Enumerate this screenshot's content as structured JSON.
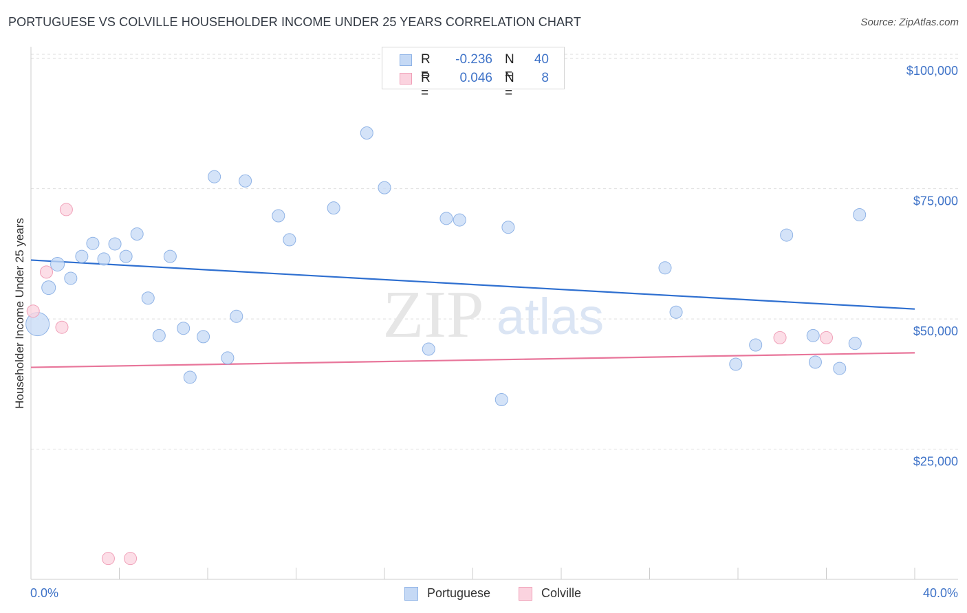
{
  "title": "PORTUGUESE VS COLVILLE HOUSEHOLDER INCOME UNDER 25 YEARS CORRELATION CHART",
  "source": "Source: ZipAtlas.com",
  "stats": {
    "rows": [
      {
        "r_label": "R =",
        "r_value": "-0.236",
        "n_label": "N =",
        "n_value": "40"
      },
      {
        "r_label": "R =",
        "r_value": "0.046",
        "n_label": "N =",
        "n_value": "8"
      }
    ]
  },
  "legend": {
    "items": [
      {
        "label": "Portuguese"
      },
      {
        "label": "Colville"
      }
    ]
  },
  "watermark": {
    "zip": "ZIP",
    "atlas": "atlas"
  },
  "colors": {
    "blue_fill": "#c5d9f5",
    "blue_stroke": "#8fb3e6",
    "blue_line": "#2e6fd0",
    "pink_fill": "#fbd3df",
    "pink_stroke": "#f0a0b8",
    "pink_line": "#e8759a",
    "tick_label": "#3f73c8",
    "grid": "#dddddd"
  },
  "chart_data": {
    "type": "scatter",
    "title": "PORTUGUESE VS COLVILLE HOUSEHOLDER INCOME UNDER 25 YEARS CORRELATION CHART",
    "xlabel": "",
    "ylabel": "Householder Income Under 25 years",
    "xlim": [
      0,
      40
    ],
    "ylim": [
      0,
      102000
    ],
    "x_tick_labels": [
      "0.0%",
      "40.0%"
    ],
    "y_ticks": [
      25000,
      50000,
      75000,
      100000
    ],
    "y_tick_labels": [
      "$25,000",
      "$50,000",
      "$75,000",
      "$100,000"
    ],
    "series": [
      {
        "name": "Portuguese",
        "color": "#8fb3e6",
        "points": [
          [
            0.3,
            49000
          ],
          [
            0.8,
            56000
          ],
          [
            1.2,
            60500
          ],
          [
            1.8,
            57800
          ],
          [
            2.3,
            62000
          ],
          [
            2.8,
            64500
          ],
          [
            3.3,
            61500
          ],
          [
            3.8,
            64400
          ],
          [
            4.3,
            62000
          ],
          [
            4.8,
            66300
          ],
          [
            5.3,
            54000
          ],
          [
            5.8,
            46800
          ],
          [
            6.3,
            62000
          ],
          [
            6.9,
            48200
          ],
          [
            7.2,
            38800
          ],
          [
            7.8,
            46600
          ],
          [
            8.3,
            77300
          ],
          [
            8.9,
            42500
          ],
          [
            9.3,
            50500
          ],
          [
            9.7,
            76500
          ],
          [
            11.2,
            69800
          ],
          [
            11.7,
            65200
          ],
          [
            13.7,
            71300
          ],
          [
            15.2,
            85700
          ],
          [
            16.0,
            75200
          ],
          [
            18.0,
            44200
          ],
          [
            18.8,
            69300
          ],
          [
            19.4,
            69000
          ],
          [
            21.3,
            34500
          ],
          [
            21.6,
            67600
          ],
          [
            28.7,
            59800
          ],
          [
            29.2,
            51300
          ],
          [
            31.9,
            41300
          ],
          [
            32.8,
            45000
          ],
          [
            34.2,
            66100
          ],
          [
            35.4,
            46800
          ],
          [
            35.5,
            41700
          ],
          [
            36.6,
            40500
          ],
          [
            37.3,
            45300
          ],
          [
            37.5,
            70000
          ]
        ],
        "sizes": [
          34,
          20,
          20,
          18,
          18,
          18,
          18,
          18,
          18,
          18,
          18,
          18,
          18,
          18,
          18,
          18,
          18,
          18,
          18,
          18,
          18,
          18,
          18,
          18,
          18,
          18,
          18,
          18,
          18,
          18,
          18,
          18,
          18,
          18,
          18,
          18,
          18,
          18,
          18,
          18
        ],
        "trend": {
          "x": [
            0,
            40
          ],
          "y": [
            61300,
            51900
          ]
        }
      },
      {
        "name": "Colville",
        "color": "#f0a0b8",
        "points": [
          [
            0.1,
            51500
          ],
          [
            0.7,
            59000
          ],
          [
            1.4,
            48400
          ],
          [
            1.6,
            71000
          ],
          [
            3.5,
            4000
          ],
          [
            4.5,
            4000
          ],
          [
            33.9,
            46400
          ],
          [
            36.0,
            46400
          ]
        ],
        "sizes": [
          18,
          18,
          18,
          18,
          18,
          18,
          18,
          18
        ],
        "trend": {
          "x": [
            0,
            40
          ],
          "y": [
            40700,
            43500
          ]
        }
      }
    ]
  }
}
